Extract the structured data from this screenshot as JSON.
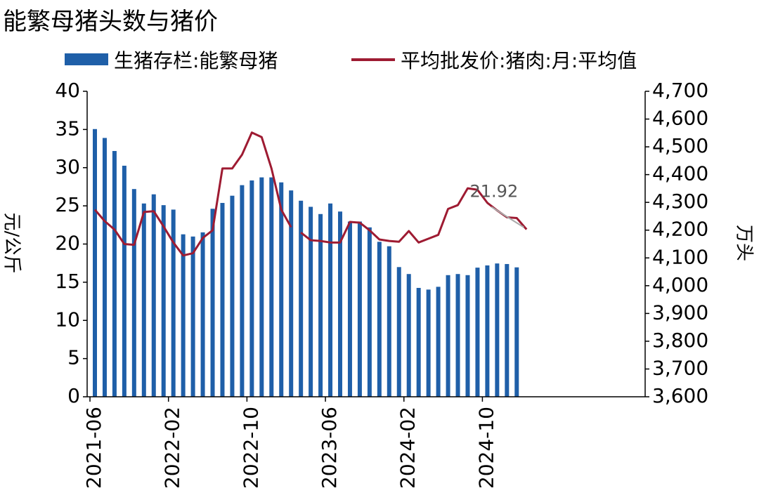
{
  "chart_data": {
    "type": "bar+line",
    "title": "能繁母猪头数与猪价",
    "legend": {
      "placement": "top",
      "bar_label": "生猪存栏:能繁母猪",
      "line_label": "平均批发价:猪肉:月:平均值"
    },
    "left_axis": {
      "label": "元/公斤",
      "range": [
        0,
        40
      ],
      "ticks": [
        "0",
        "5",
        "10",
        "15",
        "20",
        "25",
        "30",
        "35",
        "40"
      ]
    },
    "right_axis": {
      "label": "万头",
      "range": [
        3600,
        4700
      ],
      "ticks": [
        "3,600",
        "3,700",
        "3,800",
        "3,900",
        "4,000",
        "4,100",
        "4,200",
        "4,300",
        "4,400",
        "4,500",
        "4,600",
        "4,700"
      ]
    },
    "x_tick_labels": [
      "2021-06",
      "2022-02",
      "2022-10",
      "2023-06",
      "2024-02",
      "2024-10"
    ],
    "x_tick_index": [
      0,
      8,
      16,
      24,
      32,
      40
    ],
    "categories": [
      "2021-06",
      "2021-07",
      "2021-08",
      "2021-09",
      "2021-10",
      "2021-11",
      "2021-12",
      "2022-01",
      "2022-02",
      "2022-03",
      "2022-04",
      "2022-05",
      "2022-06",
      "2022-07",
      "2022-08",
      "2022-09",
      "2022-10",
      "2022-11",
      "2022-12",
      "2023-01",
      "2023-02",
      "2023-03",
      "2023-04",
      "2023-05",
      "2023-06",
      "2023-07",
      "2023-08",
      "2023-09",
      "2023-10",
      "2023-11",
      "2023-12",
      "2024-01",
      "2024-02",
      "2024-03",
      "2024-04",
      "2024-05",
      "2024-06",
      "2024-07",
      "2024-08",
      "2024-09",
      "2024-10",
      "2024-11",
      "2024-12",
      "2025-01",
      "2025-02"
    ],
    "series": [
      {
        "name": "生猪存栏:能繁母猪",
        "type": "bar",
        "axis": "right",
        "color": "#1f5fa8",
        "values": [
          4564,
          4532,
          4485,
          4432,
          4348,
          4296,
          4329,
          4290,
          4274,
          4185,
          4177,
          4192,
          4277,
          4298,
          4324,
          4362,
          4379,
          4390,
          4390,
          4372,
          4343,
          4306,
          4284,
          4258,
          4296,
          4267,
          4231,
          4231,
          4210,
          4158,
          4142,
          4067,
          4042,
          3992,
          3986,
          3996,
          4038,
          4042,
          4038,
          4065,
          4073,
          4080,
          4078,
          4066,
          null
        ]
      },
      {
        "name": "平均批发价:猪肉:月:平均值",
        "type": "line",
        "axis": "left",
        "color": "#9e1b32",
        "width": 3,
        "gaps_after": [
          20
        ],
        "values": [
          24.5,
          23.0,
          21.9,
          20.0,
          19.9,
          24.2,
          24.3,
          22.3,
          20.2,
          18.5,
          18.8,
          20.8,
          21.8,
          29.9,
          29.9,
          31.7,
          34.6,
          34.0,
          29.9,
          24.5,
          22.2,
          21.5,
          20.5,
          20.4,
          20.2,
          20.2,
          22.9,
          22.8,
          21.8,
          20.6,
          20.4,
          20.3,
          21.7,
          20.2,
          20.7,
          21.2,
          24.6,
          25.1,
          27.3,
          27.1,
          25.4,
          24.4,
          23.5,
          23.4,
          21.92
        ]
      }
    ],
    "annotation": {
      "text": "21.92",
      "index": 44,
      "series": "平均批发价:猪肉:月:平均值"
    },
    "grid": false
  }
}
